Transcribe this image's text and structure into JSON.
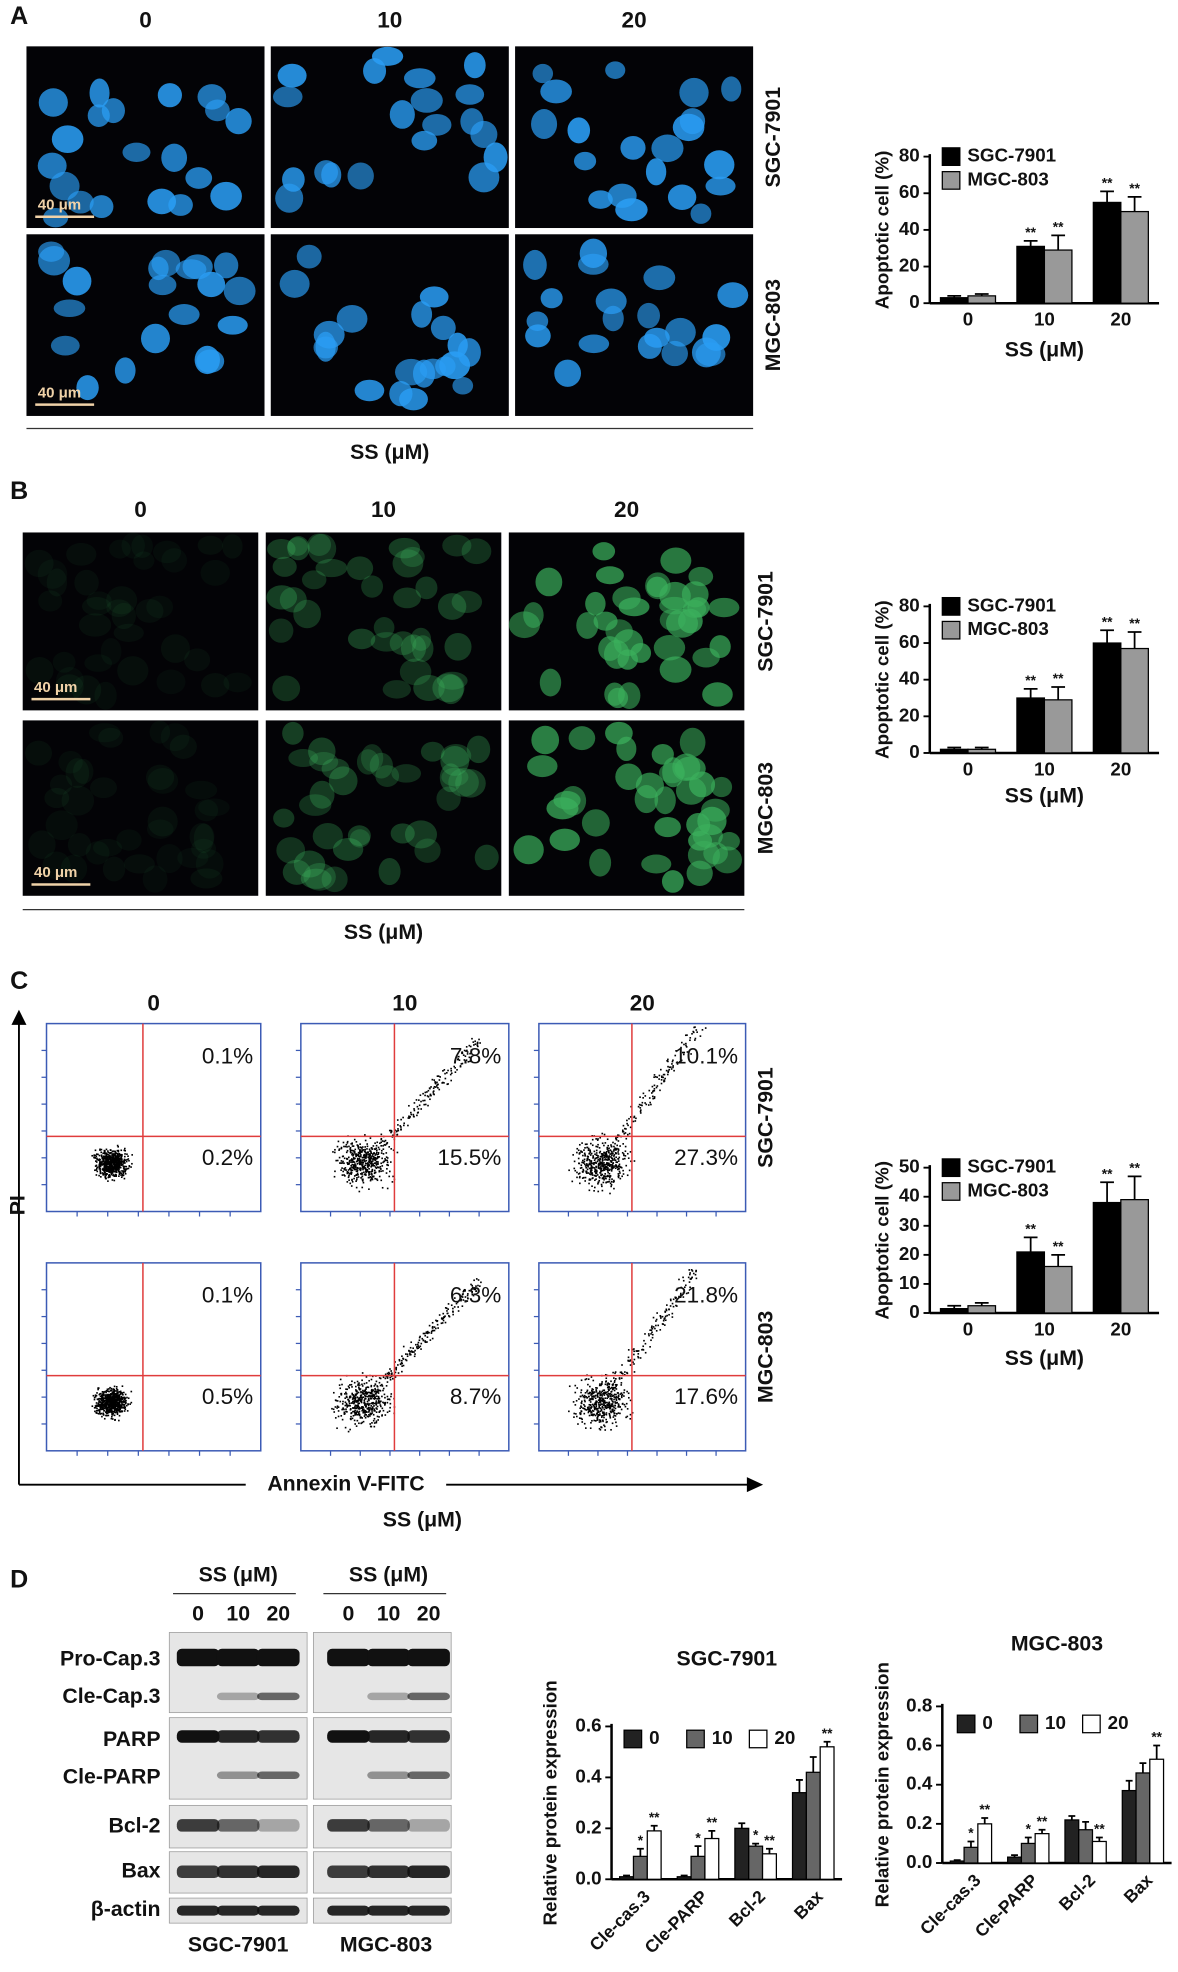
{
  "figure": {
    "A": {
      "letter": "A",
      "columns": [
        "0",
        "10",
        "20"
      ],
      "rows": [
        "SGC-7901",
        "MGC-803"
      ],
      "scale_bar": "40 μm",
      "xlabel": "SS (μM)"
    },
    "B": {
      "letter": "B",
      "columns": [
        "0",
        "10",
        "20"
      ],
      "rows": [
        "SGC-7901",
        "MGC-803"
      ],
      "scale_bar": "40 μm",
      "xlabel": "SS (μM)"
    },
    "C": {
      "letter": "C",
      "columns": [
        "0",
        "10",
        "20"
      ],
      "rows": [
        "SGC-7901",
        "MGC-803"
      ],
      "quadrants": [
        [
          [
            "0.1%",
            "0.2%"
          ],
          [
            "7.8%",
            "15.5%"
          ],
          [
            "10.1%",
            "27.3%"
          ]
        ],
        [
          [
            "0.1%",
            "0.5%"
          ],
          [
            "6.3%",
            "8.7%"
          ],
          [
            "21.8%",
            "17.6%"
          ]
        ]
      ],
      "y_axis": "PI",
      "x_axis": "Annexin V-FITC",
      "xlabel": "SS (μM)"
    },
    "D": {
      "letter": "D",
      "treatment": "SS (μM)",
      "doses": [
        "0",
        "10",
        "20"
      ],
      "proteins": [
        "Pro-Cap.3",
        "Cle-Cap.3",
        "PARP",
        "Cle-PARP",
        "Bcl-2",
        "Bax",
        "β-actin"
      ],
      "cell_lines": [
        "SGC-7901",
        "MGC-803"
      ]
    }
  },
  "chart_data": [
    {
      "type": "bar",
      "ylabel": "Apoptotic cell (%)",
      "xlabel": "SS (μM)",
      "categories": [
        "0",
        "10",
        "20"
      ],
      "series": [
        {
          "name": "SGC-7901",
          "color": "#000000",
          "values": [
            3,
            31,
            55
          ],
          "errors": [
            1,
            3,
            6
          ],
          "significance": [
            null,
            "**",
            "**"
          ]
        },
        {
          "name": "MGC-803",
          "color": "#999999",
          "values": [
            4,
            29,
            50
          ],
          "errors": [
            1,
            8,
            8
          ],
          "significance": [
            null,
            "**",
            "**"
          ]
        }
      ],
      "ylim": [
        0,
        80
      ],
      "yticks": [
        0,
        20,
        40,
        60,
        80
      ],
      "legend": "upper-left"
    },
    {
      "type": "bar",
      "ylabel": "Apoptotic cell (%)",
      "xlabel": "SS (μM)",
      "categories": [
        "0",
        "10",
        "20"
      ],
      "series": [
        {
          "name": "SGC-7901",
          "color": "#000000",
          "values": [
            2,
            30,
            60
          ],
          "errors": [
            1,
            5,
            7
          ],
          "significance": [
            null,
            "**",
            "**"
          ]
        },
        {
          "name": "MGC-803",
          "color": "#999999",
          "values": [
            2,
            29,
            57
          ],
          "errors": [
            1,
            7,
            9
          ],
          "significance": [
            null,
            "**",
            "**"
          ]
        }
      ],
      "ylim": [
        0,
        80
      ],
      "yticks": [
        0,
        20,
        40,
        60,
        80
      ],
      "legend": "upper-left"
    },
    {
      "type": "bar",
      "ylabel": "Apoptotic cell (%)",
      "xlabel": "SS (μM)",
      "categories": [
        "0",
        "10",
        "20"
      ],
      "series": [
        {
          "name": "SGC-7901",
          "color": "#000000",
          "values": [
            1.5,
            21,
            38
          ],
          "errors": [
            1,
            5,
            7
          ],
          "significance": [
            null,
            "**",
            "**"
          ]
        },
        {
          "name": "MGC-803",
          "color": "#999999",
          "values": [
            2.5,
            16,
            39
          ],
          "errors": [
            1,
            4,
            8
          ],
          "significance": [
            null,
            "**",
            "**"
          ]
        }
      ],
      "ylim": [
        0,
        50
      ],
      "yticks": [
        0,
        10,
        20,
        30,
        40,
        50
      ],
      "legend": "upper-left"
    },
    {
      "type": "bar",
      "title": "SGC-7901",
      "ylabel": "Relative protein expression",
      "categories": [
        "Cle-cas.3",
        "Cle-PARP",
        "Bcl-2",
        "Bax"
      ],
      "series": [
        {
          "name": "0",
          "color": "#222222",
          "values": [
            0.01,
            0.01,
            0.2,
            0.34
          ],
          "errors": [
            0.005,
            0.005,
            0.02,
            0.05
          ],
          "significance": [
            null,
            null,
            null,
            null
          ]
        },
        {
          "name": "10",
          "color": "#666666",
          "values": [
            0.09,
            0.09,
            0.13,
            0.42
          ],
          "errors": [
            0.03,
            0.04,
            0.01,
            0.06
          ],
          "significance": [
            "*",
            "*",
            "*",
            null
          ]
        },
        {
          "name": "20",
          "color": "#ffffff",
          "values": [
            0.19,
            0.16,
            0.1,
            0.52
          ],
          "errors": [
            0.02,
            0.03,
            0.02,
            0.02
          ],
          "significance": [
            "**",
            "**",
            "**",
            "**"
          ]
        }
      ],
      "ylim": [
        0,
        0.6
      ],
      "yticks": [
        {
          "value": 0,
          "label": "0.0"
        },
        0.2,
        0.4,
        0.6
      ],
      "legend": "top"
    },
    {
      "type": "bar",
      "title": "MGC-803",
      "ylabel": "Relative protein expression",
      "categories": [
        "Cle-cas.3",
        "Cle-PARP",
        "Bcl-2",
        "Bax"
      ],
      "series": [
        {
          "name": "0",
          "color": "#222222",
          "values": [
            0.01,
            0.03,
            0.22,
            0.37
          ],
          "errors": [
            0.005,
            0.01,
            0.02,
            0.05
          ],
          "significance": [
            null,
            null,
            null,
            null
          ]
        },
        {
          "name": "10",
          "color": "#666666",
          "values": [
            0.08,
            0.1,
            0.17,
            0.46
          ],
          "errors": [
            0.03,
            0.03,
            0.04,
            0.05
          ],
          "significance": [
            "*",
            "*",
            null,
            null
          ]
        },
        {
          "name": "20",
          "color": "#ffffff",
          "values": [
            0.2,
            0.15,
            0.11,
            0.53
          ],
          "errors": [
            0.03,
            0.02,
            0.02,
            0.07
          ],
          "significance": [
            "**",
            "**",
            "**",
            "**"
          ]
        }
      ],
      "ylim": [
        0,
        0.8
      ],
      "yticks": [
        {
          "value": 0,
          "label": "0.0"
        },
        0.2,
        0.4,
        0.6,
        0.8
      ],
      "legend": "top"
    }
  ]
}
